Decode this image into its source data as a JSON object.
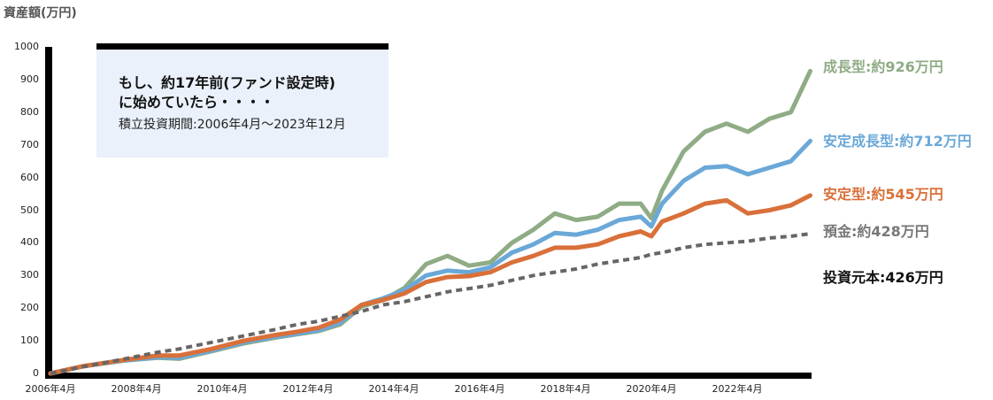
{
  "chart_data": {
    "type": "line",
    "title": "",
    "ylabel": "資産額(万円)",
    "xlabel": "",
    "ylim": [
      0,
      1000
    ],
    "yticks": [
      "0",
      "100",
      "200",
      "300",
      "400",
      "500",
      "600",
      "700",
      "800",
      "900",
      "1000"
    ],
    "xticks": [
      "2006年4月",
      "2008年4月",
      "2010年4月",
      "2012年4月",
      "2014年4月",
      "2016年4月",
      "2018年4月",
      "2020年4月",
      "2022年4月"
    ],
    "grid": false,
    "legend_position": "right (end-of-line labels)",
    "x": [
      2006.25,
      2007.0,
      2008.0,
      2008.75,
      2009.25,
      2010.0,
      2010.75,
      2011.5,
      2012.0,
      2012.5,
      2013.0,
      2013.5,
      2014.0,
      2014.5,
      2015.0,
      2015.5,
      2016.0,
      2016.5,
      2017.0,
      2017.5,
      2018.0,
      2018.5,
      2019.0,
      2019.5,
      2020.0,
      2020.25,
      2020.5,
      2021.0,
      2021.5,
      2022.0,
      2022.5,
      2023.0,
      2023.5,
      2023.95
    ],
    "series": [
      {
        "name": "成長型",
        "color": "#8fac85",
        "final_label": "成長型:約926万円",
        "values": [
          0,
          22,
          40,
          48,
          45,
          68,
          92,
          110,
          120,
          130,
          150,
          205,
          225,
          262,
          335,
          360,
          330,
          340,
          400,
          440,
          490,
          470,
          480,
          520,
          520,
          475,
          560,
          680,
          740,
          765,
          740,
          780,
          800,
          926
        ]
      },
      {
        "name": "安定成長型",
        "color": "#6aa8d8",
        "final_label": "安定成長型:約712万円",
        "values": [
          0,
          22,
          40,
          50,
          48,
          70,
          95,
          112,
          122,
          132,
          155,
          210,
          230,
          255,
          300,
          315,
          310,
          325,
          370,
          395,
          430,
          425,
          440,
          470,
          480,
          450,
          520,
          590,
          630,
          635,
          610,
          630,
          650,
          712
        ]
      },
      {
        "name": "安定型",
        "color": "#d9703a",
        "final_label": "安定型:約545万円",
        "values": [
          0,
          22,
          42,
          55,
          55,
          75,
          100,
          118,
          128,
          140,
          165,
          210,
          225,
          245,
          280,
          295,
          298,
          310,
          340,
          360,
          385,
          385,
          395,
          420,
          435,
          420,
          465,
          490,
          520,
          530,
          490,
          500,
          515,
          545
        ]
      },
      {
        "name": "預金",
        "color": "#666666",
        "style": "dashed",
        "final_label": "預金:約428万円",
        "values": [
          0,
          20,
          45,
          65,
          75,
          95,
          115,
          135,
          150,
          160,
          175,
          190,
          210,
          220,
          235,
          250,
          260,
          270,
          285,
          300,
          310,
          320,
          335,
          345,
          355,
          365,
          370,
          385,
          395,
          400,
          405,
          415,
          420,
          428
        ]
      }
    ],
    "annotations": [
      "投資元本:426万円"
    ]
  },
  "header": {
    "y_axis_title": "資産額(万円)"
  },
  "callout": {
    "line1": "もし、約17年前(ファンド設定時)",
    "line2": "に始めていたら・・・・",
    "period": "積立投資期間:2006年4月〜2023年12月"
  },
  "legend": {
    "growth": "成長型:約926万円",
    "stable_growth": "安定成長型:約712万円",
    "stable": "安定型:約545万円",
    "deposit": "預金:約428万円",
    "principal": "投資元本:426万円"
  },
  "colors": {
    "growth": "#8fac85",
    "stable_growth": "#6aa8d8",
    "stable": "#d9703a",
    "deposit": "#666666",
    "principal": "#111111",
    "callout_bg": "#eaf1fb"
  }
}
